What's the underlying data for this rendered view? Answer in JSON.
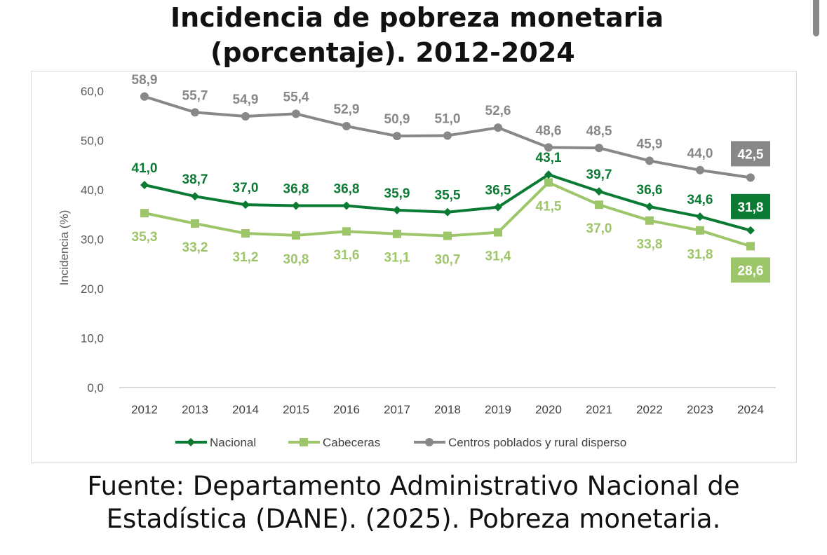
{
  "title": {
    "line1": "Incidencia de pobreza monetaria",
    "line2": "(porcentaje). 2012-2024"
  },
  "source": {
    "line1": "Fuente: Departamento Administrativo Nacional de",
    "line2": "Estadística (DANE). (2025). Pobreza monetaria."
  },
  "chart_data": {
    "type": "line",
    "title": "",
    "xlabel": "",
    "ylabel": "Incidencia (%)",
    "ylim": [
      0,
      60
    ],
    "yticks": [
      "0,0",
      "10,0",
      "20,0",
      "30,0",
      "40,0",
      "50,0",
      "60,0"
    ],
    "categories": [
      "2012",
      "2013",
      "2014",
      "2015",
      "2016",
      "2017",
      "2018",
      "2019",
      "2020",
      "2021",
      "2022",
      "2023",
      "2024"
    ],
    "grid": false,
    "legend_position": "bottom",
    "series": [
      {
        "name": "Nacional",
        "color": "#0b7a33",
        "marker": "diamond",
        "label_position": "above",
        "values": [
          41.0,
          38.7,
          37.0,
          36.8,
          36.8,
          35.9,
          35.5,
          36.5,
          43.1,
          39.7,
          36.6,
          34.6,
          31.8
        ],
        "labels": [
          "41,0",
          "38,7",
          "37,0",
          "36,8",
          "36,8",
          "35,9",
          "35,5",
          "36,5",
          "43,1",
          "39,7",
          "36,6",
          "34,6",
          "31,8"
        ]
      },
      {
        "name": "Cabeceras",
        "color": "#9dc56a",
        "marker": "square",
        "label_position": "below",
        "values": [
          35.3,
          33.2,
          31.2,
          30.8,
          31.6,
          31.1,
          30.7,
          31.4,
          41.5,
          37.0,
          33.8,
          31.8,
          28.6
        ],
        "labels": [
          "35,3",
          "33,2",
          "31,2",
          "30,8",
          "31,6",
          "31,1",
          "30,7",
          "31,4",
          "41,5",
          "37,0",
          "33,8",
          "31,8",
          "28,6"
        ]
      },
      {
        "name": "Centros poblados y rural disperso",
        "color": "#888888",
        "marker": "circle",
        "label_position": "above",
        "values": [
          58.9,
          55.7,
          54.9,
          55.4,
          52.9,
          50.9,
          51.0,
          52.6,
          48.6,
          48.5,
          45.9,
          44.0,
          42.5
        ],
        "labels": [
          "58,9",
          "55,7",
          "54,9",
          "55,4",
          "52,9",
          "50,9",
          "51,0",
          "52,6",
          "48,6",
          "48,5",
          "45,9",
          "44,0",
          "42,5"
        ]
      }
    ]
  }
}
